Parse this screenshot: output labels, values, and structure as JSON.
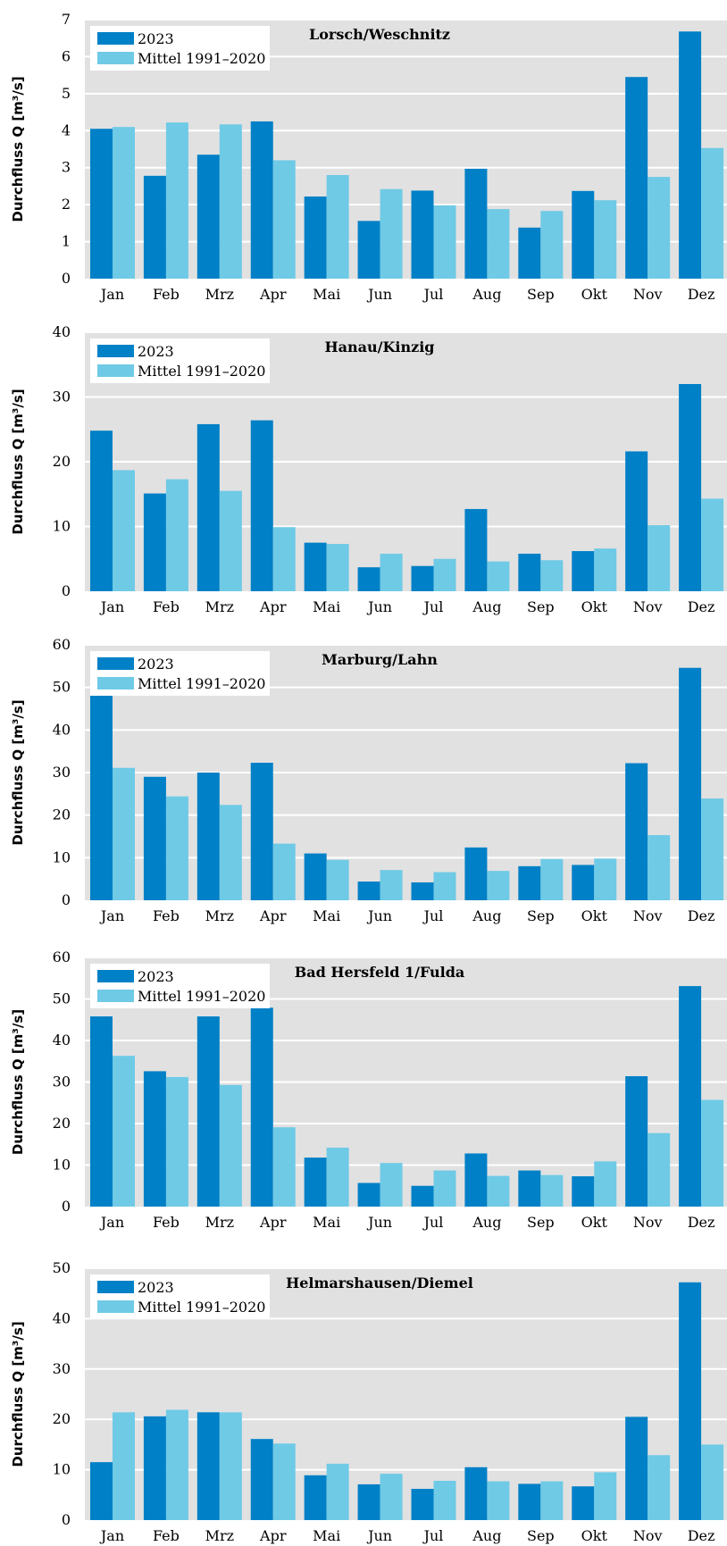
{
  "colors": {
    "series_2023": "#0080c6",
    "series_mean": "#6fcae6",
    "plot_bg": "#e1e1e1",
    "grid": "#ffffff"
  },
  "chart_data": [
    {
      "type": "bar",
      "title": "Lorsch/Weschnitz",
      "ylabel": "Durchfluss Q [m³/s]",
      "categories": [
        "Jan",
        "Feb",
        "Mrz",
        "Apr",
        "Mai",
        "Jun",
        "Jul",
        "Aug",
        "Sep",
        "Okt",
        "Nov",
        "Dez"
      ],
      "ylim": [
        0,
        7
      ],
      "yticks": [
        0,
        1,
        2,
        3,
        4,
        5,
        6,
        7
      ],
      "legend_position": "top-left",
      "grid": true,
      "series": [
        {
          "name": "2023",
          "values": [
            4.05,
            2.78,
            3.35,
            4.25,
            2.22,
            1.56,
            2.38,
            2.97,
            1.38,
            2.37,
            5.45,
            6.68
          ]
        },
        {
          "name": "Mittel 1991–2020",
          "values": [
            4.1,
            4.22,
            4.17,
            3.2,
            2.8,
            2.42,
            1.98,
            1.88,
            1.83,
            2.12,
            2.75,
            3.53
          ]
        }
      ]
    },
    {
      "type": "bar",
      "title": "Hanau/Kinzig",
      "ylabel": "Durchfluss Q [m³/s]",
      "categories": [
        "Jan",
        "Feb",
        "Mrz",
        "Apr",
        "Mai",
        "Jun",
        "Jul",
        "Aug",
        "Sep",
        "Okt",
        "Nov",
        "Dez"
      ],
      "ylim": [
        0,
        40
      ],
      "yticks": [
        0,
        10,
        20,
        30,
        40
      ],
      "legend_position": "top-left",
      "grid": true,
      "series": [
        {
          "name": "2023",
          "values": [
            24.8,
            15.1,
            25.8,
            26.4,
            7.5,
            3.7,
            3.9,
            12.7,
            5.8,
            6.2,
            21.6,
            32.0
          ]
        },
        {
          "name": "Mittel 1991–2020",
          "values": [
            18.7,
            17.3,
            15.5,
            9.9,
            7.3,
            5.8,
            5.0,
            4.6,
            4.8,
            6.6,
            10.2,
            14.3
          ]
        }
      ]
    },
    {
      "type": "bar",
      "title": "Marburg/Lahn",
      "ylabel": "Durchfluss Q [m³/s]",
      "categories": [
        "Jan",
        "Feb",
        "Mrz",
        "Apr",
        "Mai",
        "Jun",
        "Jul",
        "Aug",
        "Sep",
        "Okt",
        "Nov",
        "Dez"
      ],
      "ylim": [
        0,
        60
      ],
      "yticks": [
        0,
        10,
        20,
        30,
        40,
        50,
        60
      ],
      "legend_position": "top-left",
      "grid": true,
      "series": [
        {
          "name": "2023",
          "values": [
            49.0,
            29.0,
            30.0,
            32.3,
            11.0,
            4.4,
            4.2,
            12.4,
            8.0,
            8.3,
            32.2,
            54.6
          ]
        },
        {
          "name": "Mittel 1991–2020",
          "values": [
            31.1,
            24.4,
            22.4,
            13.3,
            9.5,
            7.1,
            6.6,
            6.9,
            9.7,
            9.8,
            15.3,
            23.9
          ]
        }
      ]
    },
    {
      "type": "bar",
      "title": "Bad Hersfeld 1/Fulda",
      "ylabel": "Durchfluss Q [m³/s]",
      "categories": [
        "Jan",
        "Feb",
        "Mrz",
        "Apr",
        "Mai",
        "Jun",
        "Jul",
        "Aug",
        "Sep",
        "Okt",
        "Nov",
        "Dez"
      ],
      "ylim": [
        0,
        60
      ],
      "yticks": [
        0,
        10,
        20,
        30,
        40,
        50,
        60
      ],
      "legend_position": "top-left",
      "grid": true,
      "series": [
        {
          "name": "2023",
          "values": [
            45.8,
            32.6,
            45.8,
            47.9,
            11.8,
            5.7,
            5.0,
            12.8,
            8.7,
            7.3,
            31.4,
            53.1
          ]
        },
        {
          "name": "Mittel 1991–2020",
          "values": [
            36.3,
            31.2,
            29.3,
            19.1,
            14.2,
            10.5,
            8.7,
            7.4,
            7.6,
            10.9,
            17.7,
            25.7
          ]
        }
      ]
    },
    {
      "type": "bar",
      "title": "Helmarshausen/Diemel",
      "ylabel": "Durchfluss Q [m³/s]",
      "categories": [
        "Jan",
        "Feb",
        "Mrz",
        "Apr",
        "Mai",
        "Jun",
        "Jul",
        "Aug",
        "Sep",
        "Okt",
        "Nov",
        "Dez"
      ],
      "ylim": [
        0,
        50
      ],
      "yticks": [
        0,
        10,
        20,
        30,
        40,
        50
      ],
      "legend_position": "top-left",
      "grid": true,
      "series": [
        {
          "name": "2023",
          "values": [
            11.5,
            20.6,
            21.4,
            16.1,
            8.9,
            7.1,
            6.2,
            10.5,
            7.2,
            6.7,
            20.5,
            47.2
          ]
        },
        {
          "name": "Mittel 1991–2020",
          "values": [
            21.4,
            21.9,
            21.4,
            15.2,
            11.2,
            9.2,
            7.8,
            7.7,
            7.7,
            9.5,
            12.9,
            15.0
          ]
        }
      ]
    }
  ]
}
